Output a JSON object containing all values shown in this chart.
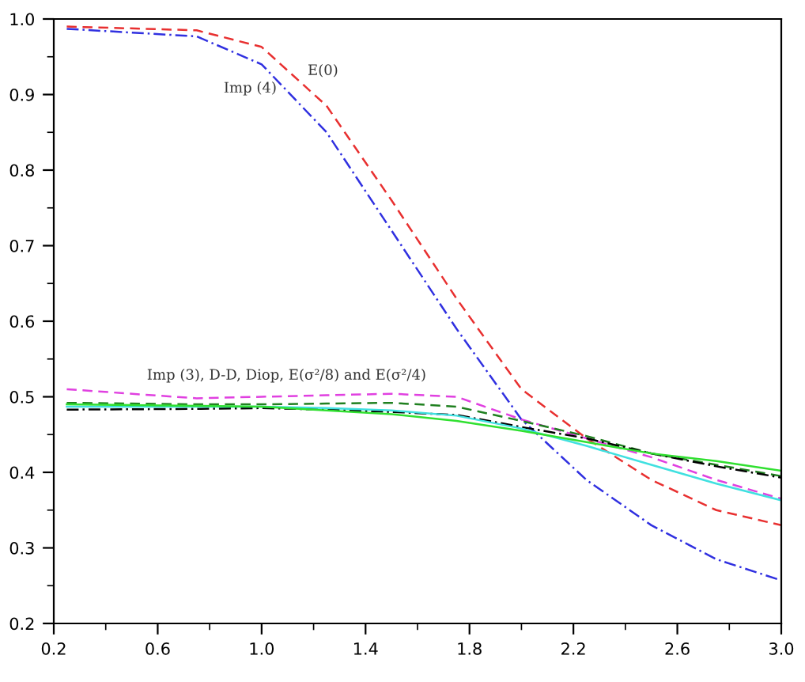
{
  "chart_data": {
    "type": "line",
    "x": [
      0.25,
      0.75,
      1.0,
      1.25,
      1.5,
      1.75,
      2.0,
      2.25,
      2.5,
      2.75,
      3.0
    ],
    "series": [
      {
        "color": "#e83030",
        "line_style": "dashed",
        "values": [
          0.99,
          0.985,
          0.963,
          0.885,
          0.76,
          0.63,
          0.51,
          0.445,
          0.39,
          0.35,
          0.33
        ]
      },
      {
        "color": "#3030e0",
        "line_style": "dashdot",
        "values": [
          0.987,
          0.977,
          0.94,
          0.85,
          0.72,
          0.59,
          0.47,
          0.39,
          0.33,
          0.285,
          0.257
        ]
      },
      {
        "color": "#e040e0",
        "line_style": "dashed",
        "values": [
          0.51,
          0.498,
          0.5,
          0.502,
          0.504,
          0.5,
          0.47,
          0.445,
          0.42,
          0.39,
          0.365
        ]
      },
      {
        "color": "#208020",
        "line_style": "dashed",
        "values": [
          0.492,
          0.49,
          0.49,
          0.491,
          0.492,
          0.487,
          0.468,
          0.448,
          0.425,
          0.41,
          0.395
        ]
      },
      {
        "color": "#000000",
        "line_style": "dashdot",
        "values": [
          0.483,
          0.484,
          0.485,
          0.483,
          0.48,
          0.476,
          0.46,
          0.445,
          0.425,
          0.408,
          0.393
        ]
      },
      {
        "color": "#40e0e0",
        "line_style": "solid",
        "values": [
          0.487,
          0.487,
          0.487,
          0.485,
          0.482,
          0.475,
          0.458,
          0.435,
          0.41,
          0.385,
          0.363
        ]
      },
      {
        "color": "#30e030",
        "line_style": "solid",
        "values": [
          0.49,
          0.488,
          0.487,
          0.482,
          0.477,
          0.468,
          0.455,
          0.44,
          0.425,
          0.415,
          0.402
        ]
      }
    ],
    "xlim": [
      0.2,
      3.0
    ],
    "xticks": [
      {
        "value": 0.2,
        "label": "0.2"
      },
      {
        "value": 0.6,
        "label": "0.6"
      },
      {
        "value": 1.0,
        "label": "1.0"
      },
      {
        "value": 1.4,
        "label": "1.4"
      },
      {
        "value": 1.8,
        "label": "1.8"
      },
      {
        "value": 2.2,
        "label": "2.2"
      },
      {
        "value": 2.6,
        "label": "2.6"
      },
      {
        "value": 3.0,
        "label": "3.0"
      }
    ],
    "ylim": [
      0.2,
      1.0
    ],
    "yticks": [
      {
        "value": 0.2,
        "label": "0.2"
      },
      {
        "value": 0.3,
        "label": "0.3"
      },
      {
        "value": 0.4,
        "label": "0.4"
      },
      {
        "value": 0.5,
        "label": "0.5"
      },
      {
        "value": 0.6,
        "label": "0.6"
      },
      {
        "value": 0.7,
        "label": "0.7"
      },
      {
        "value": 0.8,
        "label": "0.8"
      },
      {
        "value": 0.9,
        "label": "0.9"
      },
      {
        "value": 1.0,
        "label": "1.0"
      }
    ],
    "grid": false,
    "legend": false,
    "marker": "none",
    "annotations": [
      "E(0)",
      "Imp (4)",
      "Imp (3), D-D, Diop, E(σ²/8) and E(σ²/4)"
    ]
  }
}
